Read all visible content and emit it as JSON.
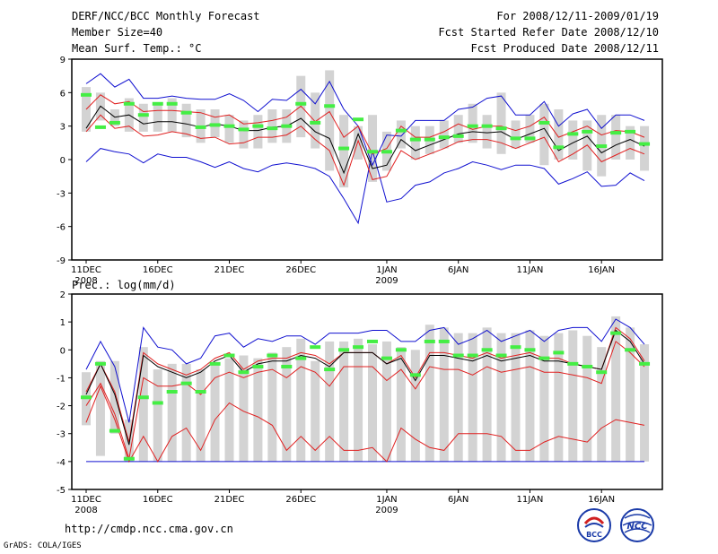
{
  "header": {
    "title": "DERF/NCC/BCC Monthly Forecast",
    "member_size": "Member Size=40",
    "variable": "Mean Surf. Temp.: °C",
    "period": "For 2008/12/11-2009/01/19",
    "refer_date": "Fcst Started Refer Date 2008/12/10",
    "produced_date": "Fcst Produced Date 2008/12/11"
  },
  "footer": {
    "url": "http://cmdp.ncc.cma.gov.cn",
    "credit": "GrADS: COLA/IGES",
    "logo_bcc": "BCC",
    "logo_ncc": "NCC"
  },
  "colors": {
    "box": "#d3d3d3",
    "median": "#000000",
    "red": "#e02020",
    "blue": "#1010d0",
    "green": "#44ee44"
  },
  "chart_data": [
    {
      "type": "line",
      "name": "temperature",
      "title": "Mean Surf. Temp.: °C",
      "ylim": [
        -9,
        9
      ],
      "yticks": [
        -9,
        -6,
        -3,
        0,
        3,
        6,
        9
      ],
      "x_tick_labels": [
        "11DEC",
        "16DEC",
        "21DEC",
        "26DEC",
        "1JAN",
        "6JAN",
        "11JAN",
        "16JAN"
      ],
      "x_tick_days": [
        1,
        6,
        11,
        16,
        22,
        27,
        32,
        37
      ],
      "x_year_labels": [
        {
          "day": 1,
          "label": "2008"
        },
        {
          "day": 22,
          "label": "2009"
        }
      ],
      "days": [
        1,
        2,
        3,
        4,
        5,
        6,
        7,
        8,
        9,
        10,
        11,
        12,
        13,
        14,
        15,
        16,
        17,
        18,
        19,
        20,
        21,
        22,
        23,
        24,
        25,
        26,
        27,
        28,
        29,
        30,
        31,
        32,
        33,
        34,
        35,
        36,
        37,
        38,
        39,
        40
      ],
      "series": [
        {
          "name": "box_low",
          "values": [
            2.5,
            3.5,
            3,
            2.5,
            2.5,
            2.5,
            2.5,
            2,
            1.5,
            2,
            1.5,
            1,
            1,
            1.5,
            1.5,
            2,
            1,
            -1,
            -2.5,
            0,
            -2,
            -1,
            1,
            0,
            0.5,
            1,
            1.5,
            1.5,
            1,
            0.5,
            1,
            1.5,
            -0.5,
            0,
            0,
            -1,
            -1.5,
            0,
            0,
            -1
          ]
        },
        {
          "name": "box_high",
          "values": [
            6.5,
            6,
            4.5,
            5.5,
            5,
            5,
            5.5,
            5,
            4.5,
            4.5,
            4,
            3.5,
            4,
            4.5,
            4.5,
            7.5,
            6,
            8,
            4,
            3,
            4,
            2.5,
            3.5,
            3,
            3,
            3.5,
            4,
            5,
            4,
            6,
            3.5,
            4,
            5,
            4.5,
            3.5,
            3.5,
            4,
            4,
            3,
            3
          ]
        },
        {
          "name": "green",
          "values": [
            5.8,
            2.9,
            3.3,
            5,
            4,
            5,
            5,
            4.2,
            2.9,
            3.1,
            3,
            2.7,
            3,
            2.8,
            3,
            5,
            3.3,
            4.8,
            1,
            3.6,
            0.7,
            0.7,
            2.6,
            1.8,
            1.8,
            2,
            2.1,
            3,
            3,
            2.8,
            1.9,
            1.9,
            3.3,
            1.1,
            2.3,
            2.5,
            1.2,
            2.4,
            2.5,
            1.4
          ]
        },
        {
          "name": "max",
          "values": [
            6.8,
            7.7,
            6.5,
            7.2,
            5.5,
            5.5,
            5.7,
            5.5,
            5.4,
            5.4,
            5.9,
            5.3,
            4.3,
            5.4,
            5.3,
            6.3,
            5,
            7,
            4.5,
            3,
            -0.5,
            2.2,
            2.1,
            3.5,
            3.5,
            3.5,
            4.5,
            4.7,
            5.5,
            5.7,
            4,
            4,
            5.2,
            3,
            4.1,
            4.5,
            2.8,
            4,
            4,
            3.5
          ]
        },
        {
          "name": "p_high",
          "values": [
            4.5,
            5.8,
            5,
            5.2,
            4.3,
            4.4,
            4.4,
            4.3,
            4.2,
            3.8,
            4,
            3.2,
            3.3,
            3.5,
            3.8,
            4.8,
            3.4,
            4.3,
            2,
            3,
            0.5,
            1,
            3,
            2,
            2,
            2.5,
            3.2,
            2.7,
            3,
            3,
            2.6,
            3,
            3.8,
            2,
            2.5,
            3,
            2.2,
            2.6,
            2.5,
            2
          ]
        },
        {
          "name": "median",
          "values": [
            2.8,
            4.8,
            3.8,
            4,
            3.2,
            3.4,
            3.4,
            3.2,
            2.9,
            3.2,
            3,
            2.6,
            2.6,
            2.9,
            3,
            3.7,
            2.5,
            1.9,
            -1.2,
            2.3,
            -0.8,
            -0.5,
            1.8,
            0.8,
            1.3,
            1.8,
            2.3,
            2.5,
            2.4,
            2.5,
            1.8,
            2.3,
            2.8,
            0.8,
            1.5,
            2.1,
            0.6,
            1.3,
            1.8,
            1.2
          ]
        },
        {
          "name": "p_low",
          "values": [
            2.5,
            4,
            2.8,
            3,
            2.1,
            2.2,
            2.5,
            2.3,
            1.9,
            2,
            1.4,
            1.5,
            2,
            2,
            2.2,
            3,
            1.8,
            0.8,
            -2.3,
            1.7,
            -1.8,
            -1.5,
            0.8,
            0,
            0.5,
            1,
            1.6,
            1.8,
            1.8,
            1.5,
            1,
            1.5,
            2,
            -0.2,
            0.5,
            1.3,
            -0.2,
            0.4,
            1,
            0.5
          ]
        },
        {
          "name": "min",
          "values": [
            -0.2,
            1,
            0.7,
            0.5,
            -0.3,
            0.5,
            0.2,
            0.2,
            -0.2,
            -0.7,
            -0.2,
            -0.8,
            -1.1,
            -0.5,
            -0.3,
            -0.5,
            -0.8,
            -1.5,
            -3.5,
            -5.7,
            0.8,
            -3.8,
            -3.5,
            -2.3,
            -2,
            -1.2,
            -0.8,
            -0.2,
            -0.5,
            -0.9,
            -0.5,
            -0.5,
            -0.8,
            -2.2,
            -1.7,
            -1.1,
            -2.4,
            -2.3,
            -1.2,
            -1.9
          ]
        }
      ]
    },
    {
      "type": "line",
      "name": "precipitation",
      "title": "Prec.: log(mm/d)",
      "ylim": [
        -5,
        2
      ],
      "yticks": [
        -5,
        -4,
        -3,
        -2,
        -1,
        0,
        1,
        2
      ],
      "x_tick_labels": [
        "11DEC",
        "16DEC",
        "21DEC",
        "26DEC",
        "1JAN",
        "6JAN",
        "11JAN",
        "16JAN"
      ],
      "x_tick_days": [
        1,
        6,
        11,
        16,
        22,
        27,
        32,
        37
      ],
      "x_year_labels": [
        {
          "day": 1,
          "label": "2008"
        },
        {
          "day": 22,
          "label": "2009"
        }
      ],
      "days": [
        1,
        2,
        3,
        4,
        5,
        6,
        7,
        8,
        9,
        10,
        11,
        12,
        13,
        14,
        15,
        16,
        17,
        18,
        19,
        20,
        21,
        22,
        23,
        24,
        25,
        26,
        27,
        28,
        29,
        30,
        31,
        32,
        33,
        34,
        35,
        36,
        37,
        38,
        39,
        40
      ],
      "series": [
        {
          "name": "box_low",
          "values": [
            -2.7,
            -3.8,
            -3,
            -4,
            -4,
            -4,
            -4,
            -4,
            -4,
            -4,
            -4,
            -4,
            -4,
            -4,
            -4,
            -4,
            -4,
            -4,
            -4,
            -4,
            -4,
            -4,
            -4,
            -4,
            -4,
            -4,
            -4,
            -4,
            -4,
            -4,
            -4,
            -4,
            -4,
            -4,
            -4,
            -4,
            -4,
            -4,
            -4,
            -4
          ]
        },
        {
          "name": "box_high",
          "values": [
            -0.8,
            -0.4,
            -0.4,
            -2.5,
            0.1,
            -0.7,
            -0.5,
            -0.5,
            -0.7,
            -0.5,
            -0.3,
            -0.2,
            -0.3,
            -0.1,
            0.1,
            0.4,
            -0.4,
            0.3,
            0.3,
            0.4,
            0.2,
            0.3,
            0.1,
            0,
            0.9,
            0.8,
            0.6,
            0.6,
            0.8,
            0.6,
            0.6,
            0.7,
            0.5,
            0.6,
            0.7,
            0.5,
            0.1,
            1.2,
            0.8,
            0.2
          ]
        },
        {
          "name": "green",
          "values": [
            -1.7,
            -0.5,
            -2.9,
            -3.9,
            -1.7,
            -1.9,
            -1.5,
            -1.2,
            -1.5,
            -0.5,
            -0.2,
            -0.8,
            -0.6,
            -0.2,
            -0.6,
            -0.3,
            0.1,
            -0.7,
            0,
            0.1,
            0.3,
            -0.3,
            0,
            -0.9,
            0.3,
            0.3,
            -0.2,
            -0.2,
            0,
            -0.2,
            0.1,
            0,
            -0.3,
            -0.1,
            -0.5,
            -0.6,
            -0.8,
            0.6,
            0,
            -0.5
          ]
        },
        {
          "name": "max",
          "values": [
            -0.7,
            0.3,
            -0.6,
            -2.6,
            0.8,
            0.1,
            0,
            -0.5,
            -0.3,
            0.5,
            0.6,
            0.1,
            0.4,
            0.3,
            0.5,
            0.5,
            0.2,
            0.6,
            0.6,
            0.6,
            0.7,
            0.7,
            0.3,
            0.3,
            0.7,
            0.8,
            0.2,
            0.4,
            0.7,
            0.3,
            0.5,
            0.7,
            0.3,
            0.7,
            0.8,
            0.8,
            0.3,
            1.1,
            0.8,
            0.2
          ]
        },
        {
          "name": "p_high",
          "values": [
            -1.5,
            -0.5,
            -1.5,
            -3.3,
            -0.1,
            -0.5,
            -0.7,
            -0.9,
            -0.7,
            -0.3,
            -0.1,
            -0.7,
            -0.4,
            -0.3,
            -0.3,
            -0.1,
            -0.2,
            -0.5,
            -0.1,
            -0.1,
            -0.1,
            -0.5,
            -0.2,
            -1,
            -0.1,
            -0.1,
            -0.2,
            -0.3,
            -0.1,
            -0.3,
            -0.2,
            -0.1,
            -0.3,
            -0.3,
            -0.5,
            -0.6,
            -0.7,
            0.8,
            0.4,
            -0.4
          ]
        },
        {
          "name": "median",
          "values": [
            -1.6,
            -0.5,
            -1.6,
            -3.4,
            -0.2,
            -0.6,
            -0.8,
            -1,
            -0.8,
            -0.4,
            -0.2,
            -0.8,
            -0.5,
            -0.4,
            -0.4,
            -0.2,
            -0.3,
            -0.6,
            -0.1,
            -0.1,
            -0.1,
            -0.5,
            -0.3,
            -1.1,
            -0.2,
            -0.2,
            -0.3,
            -0.4,
            -0.2,
            -0.4,
            -0.3,
            -0.2,
            -0.4,
            -0.4,
            -0.5,
            -0.6,
            -0.7,
            0.7,
            0.3,
            -0.5
          ]
        },
        {
          "name": "p_low",
          "values": [
            -2,
            -1.2,
            -2.3,
            -3.9,
            -1,
            -1.3,
            -1.3,
            -1.2,
            -1.6,
            -1,
            -0.8,
            -1,
            -0.8,
            -0.7,
            -1,
            -0.6,
            -0.8,
            -1.3,
            -0.6,
            -0.6,
            -0.6,
            -1.1,
            -0.7,
            -1.4,
            -0.6,
            -0.7,
            -0.7,
            -0.9,
            -0.6,
            -0.8,
            -0.7,
            -0.6,
            -0.8,
            -0.8,
            -0.9,
            -1,
            -1.2,
            0.3,
            -0.1,
            -0.6
          ]
        },
        {
          "name": "p_low2",
          "values": [
            -2.6,
            -1.3,
            -2.5,
            -4,
            -3.1,
            -4,
            -3.1,
            -2.8,
            -3.6,
            -2.5,
            -1.9,
            -2.2,
            -2.4,
            -2.7,
            -3.6,
            -3.1,
            -3.6,
            -3.1,
            -3.6,
            -3.6,
            -3.5,
            -4,
            -2.8,
            -3.2,
            -3.5,
            -3.6,
            -3,
            -3,
            -3,
            -3.1,
            -3.6,
            -3.6,
            -3.3,
            -3.1,
            -3.2,
            -3.3,
            -2.8,
            -2.5,
            -2.6,
            -2.7
          ]
        },
        {
          "name": "min",
          "values": [
            -4,
            -4,
            -4,
            -4,
            -4,
            -4,
            -4,
            -4,
            -4,
            -4,
            -4,
            -4,
            -4,
            -4,
            -4,
            -4,
            -4,
            -4,
            -4,
            -4,
            -4,
            -4,
            -4,
            -4,
            -4,
            -4,
            -4,
            -4,
            -4,
            -4,
            -4,
            -4,
            -4,
            -4,
            -4,
            -4,
            -4,
            -4,
            -4,
            -4
          ]
        }
      ]
    }
  ]
}
